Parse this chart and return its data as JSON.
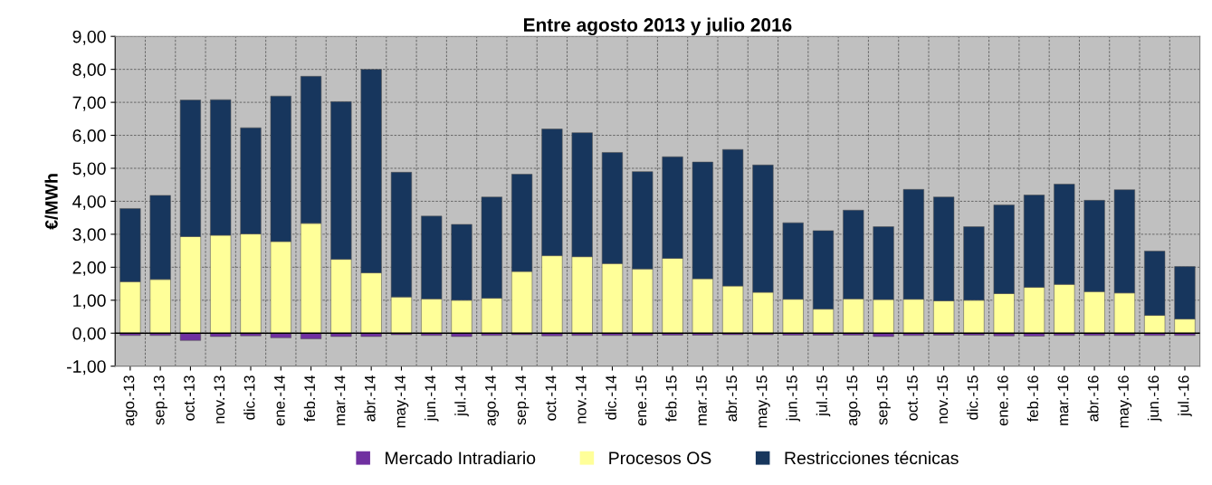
{
  "chart_data": {
    "type": "bar",
    "title": "Entre agosto 2013 y julio 2016",
    "ylabel": "€/MWh",
    "stacked": true,
    "categories": [
      "ago.-13",
      "sep.-13",
      "oct.-13",
      "nov.-13",
      "dic.-13",
      "ene.-14",
      "feb.-14",
      "mar.-14",
      "abr.-14",
      "may.-14",
      "jun.-14",
      "jul.-14",
      "ago.-14",
      "sep.-14",
      "oct.-14",
      "nov.-14",
      "dic.-14",
      "ene.-15",
      "feb.-15",
      "mar.-15",
      "abr.-15",
      "may.-15",
      "jun.-15",
      "jul.-15",
      "ago.-15",
      "sep.-15",
      "oct.-15",
      "nov.-15",
      "dic.-15",
      "ene.-16",
      "feb.-16",
      "mar.-16",
      "abr.-16",
      "may.-16",
      "jun.-16",
      "jul.-16"
    ],
    "series": [
      {
        "name": "Mercado Intradiario",
        "color": "#7030a0",
        "values": [
          -0.07,
          -0.07,
          -0.22,
          -0.1,
          -0.08,
          -0.14,
          -0.17,
          -0.1,
          -0.1,
          -0.05,
          -0.07,
          -0.1,
          -0.07,
          -0.05,
          -0.08,
          -0.07,
          -0.07,
          -0.07,
          -0.06,
          -0.06,
          -0.05,
          -0.05,
          -0.06,
          -0.06,
          -0.06,
          -0.1,
          -0.07,
          -0.06,
          -0.06,
          -0.08,
          -0.09,
          -0.07,
          -0.07,
          -0.07,
          -0.07,
          -0.07
        ]
      },
      {
        "name": "Procesos OS",
        "color": "#ffff99",
        "values": [
          1.56,
          1.63,
          2.93,
          2.97,
          3.01,
          2.78,
          3.33,
          2.24,
          1.83,
          1.1,
          1.04,
          1.0,
          1.06,
          1.87,
          2.35,
          2.32,
          2.11,
          1.95,
          2.27,
          1.65,
          1.43,
          1.24,
          1.03,
          0.73,
          1.04,
          1.02,
          1.03,
          0.98,
          1.0,
          1.2,
          1.39,
          1.48,
          1.26,
          1.22,
          0.54,
          0.43
        ]
      },
      {
        "name": "Restricciones técnicas",
        "color": "#17365d",
        "values": [
          2.22,
          2.55,
          4.14,
          4.11,
          3.22,
          4.41,
          4.46,
          4.78,
          6.17,
          3.78,
          2.51,
          2.3,
          3.07,
          2.95,
          3.84,
          3.76,
          3.37,
          2.95,
          3.08,
          3.54,
          4.14,
          3.86,
          2.32,
          2.38,
          2.69,
          2.21,
          3.33,
          3.15,
          2.23,
          2.69,
          2.8,
          3.04,
          2.77,
          3.13,
          1.95,
          1.59
        ]
      }
    ],
    "ylim": [
      -1,
      9
    ],
    "yticks": [
      {
        "value": -1,
        "label": "-1,00"
      },
      {
        "value": 0,
        "label": "0,00"
      },
      {
        "value": 1,
        "label": "1,00"
      },
      {
        "value": 2,
        "label": "2,00"
      },
      {
        "value": 3,
        "label": "3,00"
      },
      {
        "value": 4,
        "label": "4,00"
      },
      {
        "value": 5,
        "label": "5,00"
      },
      {
        "value": 6,
        "label": "6,00"
      },
      {
        "value": 7,
        "label": "7,00"
      },
      {
        "value": 8,
        "label": "8,00"
      },
      {
        "value": 9,
        "label": "9,00"
      }
    ],
    "grid": true,
    "legend": "bottom"
  }
}
